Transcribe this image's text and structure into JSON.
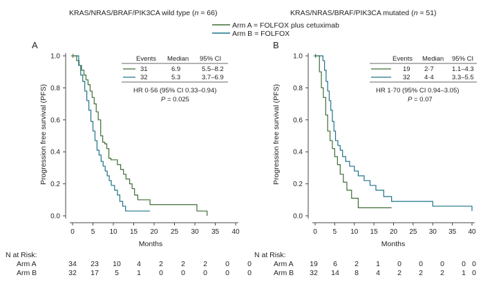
{
  "legend": {
    "arm_a": "Arm A = FOLFOX plus cetuximab",
    "arm_b": "Arm B = FOLFOX"
  },
  "colors": {
    "arm_a": "#3d6b35",
    "arm_b": "#1a7089"
  },
  "at_risk": {
    "header": "N at Risk:",
    "arm_a_label": "Arm A",
    "arm_b_label": "Arm B"
  },
  "chart_data": [
    {
      "type": "line",
      "panel_label": "A",
      "title_prefix": "KRAS/NRAS/BRAF/PIK3CA wild type (",
      "title_n": "n",
      "title_suffix": " = 66)",
      "xlabel": "Months",
      "ylabel": "Progression free survival (PFS)",
      "xlim": [
        0,
        40
      ],
      "ylim": [
        0,
        1
      ],
      "xticks": [
        "0",
        "5",
        "10",
        "15",
        "20",
        "25",
        "30",
        "35",
        "40"
      ],
      "yticks": [
        "0.0",
        "0.2",
        "0.4",
        "0.6",
        "0.8",
        "1.0"
      ],
      "table": {
        "headers": [
          "Events",
          "Median",
          "95% CI"
        ],
        "rows": [
          [
            "31",
            "6.9",
            "5.5–8.2"
          ],
          [
            "32",
            "5.3",
            "3.7–6.9"
          ]
        ]
      },
      "hr_text": "HR 0·56 (95% CI 0.33–0.94)",
      "p_label": "P",
      "p_value": " = 0.025",
      "series": [
        {
          "name": "Arm A",
          "x": [
            0,
            1,
            1.6,
            2.2,
            2.8,
            3.3,
            3.8,
            4.3,
            4.8,
            5.3,
            5.8,
            6.3,
            6.9,
            7.4,
            7.9,
            8.4,
            8.9,
            9.4,
            11,
            11.8,
            12.5,
            13.1,
            14,
            14.6,
            15.2,
            16,
            19,
            30.5,
            33
          ],
          "y": [
            1,
            0.97,
            0.94,
            0.91,
            0.88,
            0.85,
            0.82,
            0.78,
            0.74,
            0.7,
            0.65,
            0.6,
            0.5,
            0.46,
            0.45,
            0.42,
            0.36,
            0.35,
            0.32,
            0.29,
            0.26,
            0.23,
            0.2,
            0.17,
            0.13,
            0.1,
            0.07,
            0.03,
            0
          ]
        },
        {
          "name": "Arm B",
          "x": [
            0,
            1.5,
            2,
            2.5,
            3,
            3.5,
            4,
            4.5,
            5,
            5.5,
            6,
            6.5,
            7,
            7.5,
            8,
            8.5,
            9,
            9.5,
            10.3,
            11,
            11.6,
            12.3,
            13,
            13.6,
            19
          ],
          "y": [
            1,
            0.94,
            0.88,
            0.84,
            0.78,
            0.72,
            0.66,
            0.59,
            0.53,
            0.47,
            0.41,
            0.38,
            0.34,
            0.31,
            0.28,
            0.25,
            0.22,
            0.19,
            0.16,
            0.13,
            0.09,
            0.06,
            0.03,
            0.03,
            0.03
          ]
        }
      ],
      "at_risk": {
        "arm_a": [
          "34",
          "23",
          "10",
          "4",
          "2",
          "2",
          "2",
          "0",
          "0"
        ],
        "arm_b": [
          "32",
          "17",
          "5",
          "1",
          "0",
          "0",
          "0",
          "0",
          "0"
        ]
      }
    },
    {
      "type": "line",
      "panel_label": "B",
      "title_prefix": "KRAS/NRAS/BRAF/PIK3CA mutated (",
      "title_n": "n",
      "title_suffix": " = 51)",
      "xlabel": "Months",
      "ylabel": "Progression free survival (PFS)",
      "xlim": [
        0,
        40
      ],
      "ylim": [
        0,
        1
      ],
      "xticks": [
        "0",
        "5",
        "10",
        "15",
        "20",
        "25",
        "30",
        "35",
        "40"
      ],
      "yticks": [
        "0.0",
        "0.2",
        "0.4",
        "0.6",
        "0.8",
        "1.0"
      ],
      "table": {
        "headers": [
          "Events",
          "Median",
          "95% CI"
        ],
        "rows": [
          [
            "19",
            "2·7",
            "1.1–4.3"
          ],
          [
            "32",
            "4·4",
            "3.3–5.5"
          ]
        ]
      },
      "hr_text": "HR 1·70 (95% CI 0.94–3.05)",
      "p_label": "P",
      "p_value": " = 0.07",
      "series": [
        {
          "name": "Arm A",
          "x": [
            0,
            1.1,
            1.6,
            2.1,
            2.7,
            3.2,
            3.8,
            4.4,
            5,
            5.7,
            6.4,
            7.2,
            8.1,
            9.3,
            11,
            12.7,
            19.5
          ],
          "y": [
            1,
            0.9,
            0.8,
            0.74,
            0.63,
            0.53,
            0.47,
            0.42,
            0.37,
            0.32,
            0.26,
            0.21,
            0.16,
            0.11,
            0.05,
            0.05,
            0.05
          ]
        },
        {
          "name": "Arm B",
          "x": [
            0,
            2,
            2.4,
            2.8,
            3.2,
            3.6,
            4,
            4.4,
            4.8,
            5.2,
            5.8,
            6.4,
            7,
            7.8,
            8.8,
            10,
            11,
            12.5,
            14,
            15.5,
            17.5,
            19.5,
            30,
            40
          ],
          "y": [
            1,
            0.97,
            0.91,
            0.84,
            0.78,
            0.72,
            0.66,
            0.59,
            0.53,
            0.47,
            0.44,
            0.41,
            0.37,
            0.34,
            0.31,
            0.28,
            0.25,
            0.22,
            0.19,
            0.16,
            0.12,
            0.09,
            0.06,
            0.03
          ]
        }
      ],
      "at_risk": {
        "arm_a": [
          "19",
          "6",
          "2",
          "1",
          "0",
          "0",
          "0",
          "0",
          "0"
        ],
        "arm_b": [
          "32",
          "14",
          "8",
          "4",
          "2",
          "2",
          "2",
          "1",
          "0"
        ]
      }
    }
  ]
}
